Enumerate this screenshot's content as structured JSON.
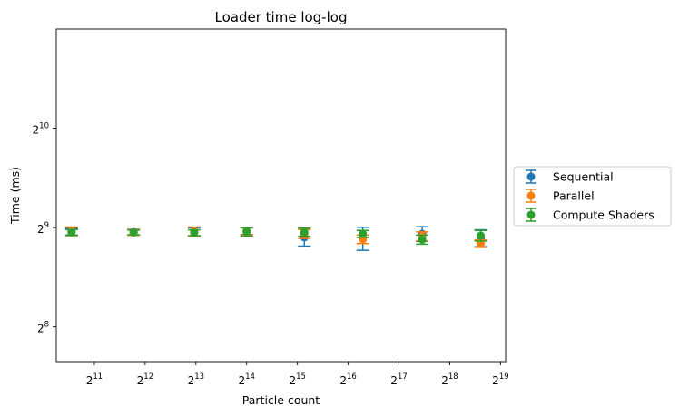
{
  "chart_data": {
    "type": "scatter",
    "title": "Loader time log-log",
    "xlabel": "Particle count",
    "ylabel": "Time (ms)",
    "x_scale": "log2",
    "y_scale": "log2",
    "xlim_log2": [
      10.25,
      19.1
    ],
    "ylim_log2": [
      7.65,
      11.0
    ],
    "x_ticks": [
      {
        "base": "2",
        "exp": "11",
        "log2": 11
      },
      {
        "base": "2",
        "exp": "12",
        "log2": 12
      },
      {
        "base": "2",
        "exp": "13",
        "log2": 13
      },
      {
        "base": "2",
        "exp": "14",
        "log2": 14
      },
      {
        "base": "2",
        "exp": "15",
        "log2": 15
      },
      {
        "base": "2",
        "exp": "16",
        "log2": 16
      },
      {
        "base": "2",
        "exp": "17",
        "log2": 17
      },
      {
        "base": "2",
        "exp": "18",
        "log2": 18
      },
      {
        "base": "2",
        "exp": "19",
        "log2": 19
      }
    ],
    "y_ticks": [
      {
        "base": "2",
        "exp": "8",
        "log2": 8
      },
      {
        "base": "2",
        "exp": "9",
        "log2": 9
      },
      {
        "base": "2",
        "exp": "10",
        "log2": 10
      }
    ],
    "legend_position": "right-outside",
    "grid": false,
    "series": [
      {
        "name": "Sequential",
        "color": "#1f77b4",
        "x": [
          1500,
          3500,
          8000,
          16384,
          36000,
          80000,
          180000,
          400000
        ],
        "y": [
          498,
          496,
          497,
          500,
          478,
          475,
          490,
          476
        ],
        "err": [
          12,
          10,
          14,
          12,
          28,
          38,
          25,
          28
        ]
      },
      {
        "name": "Parallel",
        "color": "#ff7f0e",
        "x": [
          1500,
          3500,
          8000,
          16384,
          36000,
          80000,
          180000,
          400000
        ],
        "y": [
          499,
          495,
          498,
          499,
          490,
          472,
          482,
          458
        ],
        "err": [
          15,
          10,
          16,
          12,
          15,
          14,
          15,
          12
        ]
      },
      {
        "name": "Compute Shaders",
        "color": "#2ca02c",
        "x": [
          1500,
          3500,
          8000,
          16384,
          36000,
          80000,
          180000,
          400000
        ],
        "y": [
          495,
          495,
          494,
          497,
          496,
          490,
          471,
          484
        ],
        "err": [
          10,
          8,
          10,
          14,
          14,
          12,
          15,
          18
        ]
      }
    ]
  }
}
